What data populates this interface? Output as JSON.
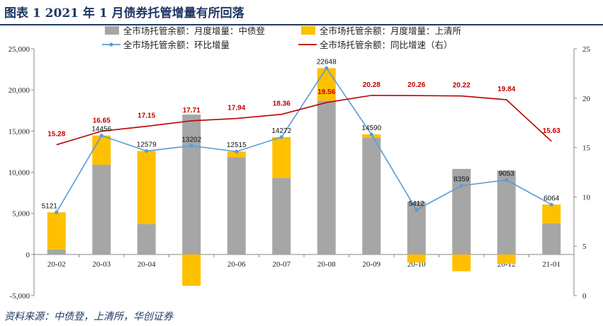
{
  "title": "图表 1    2021 年 1 月债券托管增量有所回落",
  "source": "资料来源：中债登，上清所，华创证券",
  "chart_data": {
    "type": "bar",
    "categories": [
      "20-02",
      "20-03",
      "20-04",
      "20-05",
      "20-06",
      "20-07",
      "20-08",
      "20-09",
      "20-10",
      "20-11",
      "20-12",
      "21-01"
    ],
    "series": [
      {
        "name": "全市场托管余额：月度增量：中债登",
        "type": "bar",
        "color": "#a6a6a6",
        "values": [
          600,
          10900,
          3700,
          17000,
          11800,
          9300,
          18700,
          14200,
          6400,
          10400,
          10200,
          3800
        ]
      },
      {
        "name": "全市场托管余额：月度增量：上清所",
        "type": "bar",
        "color": "#ffc000",
        "values": [
          4521,
          3556,
          8879,
          -3800,
          715,
          4972,
          3948,
          390,
          -988,
          -2041,
          -1147,
          2264
        ]
      },
      {
        "name": "全市场托管余额：环比增量",
        "type": "line",
        "color": "#5b9bd5",
        "values": [
          5121,
          14456,
          12579,
          13202,
          12515,
          14272,
          22648,
          14590,
          5412,
          8359,
          9053,
          6064
        ],
        "labels": [
          "5121",
          "14456",
          "12579",
          "13202",
          "12515",
          "14272",
          "22648",
          "14590",
          "5412",
          "8359",
          "9053",
          "6064"
        ]
      },
      {
        "name": "全市场托管余额：同比增速（右）",
        "type": "line",
        "axis": "right",
        "color": "#c00000",
        "values": [
          15.28,
          16.65,
          17.15,
          17.71,
          17.94,
          18.36,
          19.56,
          20.28,
          20.26,
          20.22,
          19.84,
          15.63
        ],
        "labels": [
          "15.28",
          "16.65",
          "17.15",
          "17.71",
          "17.94",
          "18.36",
          "19.56",
          "20.28",
          "20.26",
          "20.22",
          "19.84",
          "15.63"
        ]
      }
    ],
    "y_left": {
      "min": -5000,
      "max": 25000,
      "ticks": [
        "-5,000",
        "0",
        "5,000",
        "10,000",
        "15,000",
        "20,000",
        "25,000"
      ]
    },
    "y_right": {
      "min": 0,
      "max": 25,
      "ticks": [
        "0",
        "5",
        "10",
        "15",
        "20",
        "25"
      ]
    },
    "grid": false,
    "legend_position": "top"
  }
}
